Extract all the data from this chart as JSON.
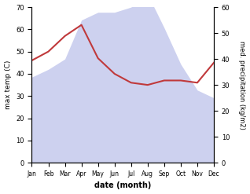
{
  "months": [
    "Jan",
    "Feb",
    "Mar",
    "Apr",
    "May",
    "Jun",
    "Jul",
    "Aug",
    "Sep",
    "Oct",
    "Nov",
    "Dec"
  ],
  "temperature": [
    46,
    50,
    57,
    62,
    47,
    40,
    36,
    35,
    37,
    37,
    36,
    45
  ],
  "precipitation": [
    33,
    36,
    40,
    55,
    58,
    58,
    60,
    65,
    52,
    38,
    28,
    25
  ],
  "temp_color": "#c0393b",
  "precip_fill_color": "#c8ccee",
  "temp_ylim": [
    0,
    70
  ],
  "precip_ylim": [
    0,
    60
  ],
  "xlabel": "date (month)",
  "ylabel_left": "max temp (C)",
  "ylabel_right": "med. precipitation (kg/m2)",
  "temp_yticks": [
    0,
    10,
    20,
    30,
    40,
    50,
    60,
    70
  ],
  "precip_yticks": [
    0,
    10,
    20,
    30,
    40,
    50,
    60
  ],
  "bg_color": "#ffffff"
}
